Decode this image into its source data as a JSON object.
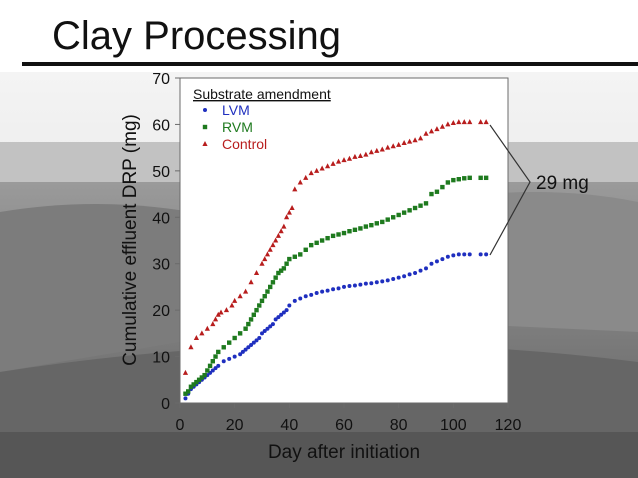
{
  "slide": {
    "title": "Clay Processing"
  },
  "annotation": {
    "text": "29 mg"
  },
  "chart_data": {
    "type": "scatter",
    "title": "",
    "xlabel": "Day after initiation",
    "ylabel": "Cumulative effluent DRP (mg)",
    "xlim": [
      0,
      120
    ],
    "ylim": [
      0,
      70
    ],
    "xticks": [
      "0",
      "20",
      "40",
      "60",
      "80",
      "100",
      "120"
    ],
    "yticks": [
      "0",
      "10",
      "20",
      "30",
      "40",
      "50",
      "60",
      "70"
    ],
    "grid": false,
    "legend": {
      "title": "Substrate amendment",
      "placement": "top-left"
    },
    "series": [
      {
        "name": "LVM",
        "marker": "circle",
        "color": "#1f2fbf",
        "points": [
          [
            2,
            1
          ],
          [
            3,
            2
          ],
          [
            4,
            3
          ],
          [
            5,
            3.5
          ],
          [
            6,
            4
          ],
          [
            7,
            4.5
          ],
          [
            8,
            5
          ],
          [
            9,
            5.5
          ],
          [
            10,
            6
          ],
          [
            11,
            6.5
          ],
          [
            12,
            7
          ],
          [
            13,
            7.5
          ],
          [
            14,
            8
          ],
          [
            16,
            9
          ],
          [
            18,
            9.5
          ],
          [
            20,
            10
          ],
          [
            22,
            10.5
          ],
          [
            23,
            11
          ],
          [
            24,
            11.5
          ],
          [
            25,
            12
          ],
          [
            26,
            12.5
          ],
          [
            27,
            13
          ],
          [
            28,
            13.5
          ],
          [
            29,
            14
          ],
          [
            30,
            15
          ],
          [
            31,
            15.5
          ],
          [
            32,
            16
          ],
          [
            33,
            16.5
          ],
          [
            34,
            17
          ],
          [
            35,
            18
          ],
          [
            36,
            18.5
          ],
          [
            37,
            19
          ],
          [
            38,
            19.5
          ],
          [
            39,
            20
          ],
          [
            40,
            21
          ],
          [
            42,
            22
          ],
          [
            44,
            22.5
          ],
          [
            46,
            23
          ],
          [
            48,
            23.3
          ],
          [
            50,
            23.7
          ],
          [
            52,
            24
          ],
          [
            54,
            24.2
          ],
          [
            56,
            24.5
          ],
          [
            58,
            24.7
          ],
          [
            60,
            25
          ],
          [
            62,
            25.2
          ],
          [
            64,
            25.3
          ],
          [
            66,
            25.5
          ],
          [
            68,
            25.7
          ],
          [
            70,
            25.8
          ],
          [
            72,
            26
          ],
          [
            74,
            26.2
          ],
          [
            76,
            26.4
          ],
          [
            78,
            26.7
          ],
          [
            80,
            27
          ],
          [
            82,
            27.3
          ],
          [
            84,
            27.7
          ],
          [
            86,
            28
          ],
          [
            88,
            28.5
          ],
          [
            90,
            29
          ],
          [
            92,
            30
          ],
          [
            94,
            30.5
          ],
          [
            96,
            31
          ],
          [
            98,
            31.5
          ],
          [
            100,
            31.8
          ],
          [
            102,
            32
          ],
          [
            104,
            32
          ],
          [
            106,
            32
          ],
          [
            110,
            32
          ],
          [
            112,
            32
          ]
        ]
      },
      {
        "name": "RVM",
        "marker": "square",
        "color": "#1e7a1e",
        "points": [
          [
            2,
            2
          ],
          [
            3,
            2.5
          ],
          [
            4,
            3.5
          ],
          [
            5,
            4
          ],
          [
            6,
            4.5
          ],
          [
            7,
            5
          ],
          [
            8,
            5.5
          ],
          [
            9,
            6
          ],
          [
            10,
            7
          ],
          [
            11,
            8
          ],
          [
            12,
            9
          ],
          [
            13,
            10
          ],
          [
            14,
            11
          ],
          [
            16,
            12
          ],
          [
            18,
            13
          ],
          [
            20,
            14
          ],
          [
            22,
            15
          ],
          [
            24,
            16
          ],
          [
            25,
            17
          ],
          [
            26,
            18
          ],
          [
            27,
            19
          ],
          [
            28,
            20
          ],
          [
            29,
            21
          ],
          [
            30,
            22
          ],
          [
            31,
            23
          ],
          [
            32,
            24
          ],
          [
            33,
            25
          ],
          [
            34,
            26
          ],
          [
            35,
            27
          ],
          [
            36,
            28
          ],
          [
            37,
            28.5
          ],
          [
            38,
            29
          ],
          [
            39,
            30
          ],
          [
            40,
            31
          ],
          [
            42,
            31.5
          ],
          [
            44,
            32
          ],
          [
            46,
            33
          ],
          [
            48,
            34
          ],
          [
            50,
            34.5
          ],
          [
            52,
            35
          ],
          [
            54,
            35.5
          ],
          [
            56,
            36
          ],
          [
            58,
            36.3
          ],
          [
            60,
            36.6
          ],
          [
            62,
            37
          ],
          [
            64,
            37.3
          ],
          [
            66,
            37.6
          ],
          [
            68,
            38
          ],
          [
            70,
            38.3
          ],
          [
            72,
            38.7
          ],
          [
            74,
            39
          ],
          [
            76,
            39.5
          ],
          [
            78,
            40
          ],
          [
            80,
            40.5
          ],
          [
            82,
            41
          ],
          [
            84,
            41.5
          ],
          [
            86,
            42
          ],
          [
            88,
            42.5
          ],
          [
            90,
            43
          ],
          [
            92,
            45
          ],
          [
            94,
            45.5
          ],
          [
            96,
            46.5
          ],
          [
            98,
            47.5
          ],
          [
            100,
            48
          ],
          [
            102,
            48.2
          ],
          [
            104,
            48.4
          ],
          [
            106,
            48.5
          ],
          [
            110,
            48.5
          ],
          [
            112,
            48.5
          ]
        ]
      },
      {
        "name": "Control",
        "marker": "triangle",
        "color": "#b81d1d",
        "points": [
          [
            2,
            6.5
          ],
          [
            4,
            12
          ],
          [
            6,
            14
          ],
          [
            8,
            15
          ],
          [
            10,
            16
          ],
          [
            12,
            17
          ],
          [
            13,
            18
          ],
          [
            14,
            19
          ],
          [
            15,
            19.5
          ],
          [
            17,
            20
          ],
          [
            19,
            21
          ],
          [
            20,
            22
          ],
          [
            22,
            23
          ],
          [
            24,
            24
          ],
          [
            26,
            26
          ],
          [
            28,
            28
          ],
          [
            30,
            30
          ],
          [
            31,
            31
          ],
          [
            32,
            32
          ],
          [
            33,
            33
          ],
          [
            34,
            34
          ],
          [
            35,
            35
          ],
          [
            36,
            36
          ],
          [
            37,
            37
          ],
          [
            38,
            38
          ],
          [
            39,
            40
          ],
          [
            40,
            41
          ],
          [
            41,
            42
          ],
          [
            42,
            46
          ],
          [
            44,
            47.5
          ],
          [
            46,
            48.5
          ],
          [
            48,
            49.5
          ],
          [
            50,
            50
          ],
          [
            52,
            50.5
          ],
          [
            54,
            51
          ],
          [
            56,
            51.5
          ],
          [
            58,
            52
          ],
          [
            60,
            52.3
          ],
          [
            62,
            52.6
          ],
          [
            64,
            53
          ],
          [
            66,
            53.2
          ],
          [
            68,
            53.5
          ],
          [
            70,
            54
          ],
          [
            72,
            54.3
          ],
          [
            74,
            54.6
          ],
          [
            76,
            55
          ],
          [
            78,
            55.3
          ],
          [
            80,
            55.6
          ],
          [
            82,
            56
          ],
          [
            84,
            56.3
          ],
          [
            86,
            56.6
          ],
          [
            88,
            57
          ],
          [
            90,
            58
          ],
          [
            92,
            58.5
          ],
          [
            94,
            59
          ],
          [
            96,
            59.5
          ],
          [
            98,
            60
          ],
          [
            100,
            60.3
          ],
          [
            102,
            60.5
          ],
          [
            104,
            60.5
          ],
          [
            106,
            60.5
          ],
          [
            110,
            60.5
          ],
          [
            112,
            60.5
          ]
        ]
      }
    ]
  }
}
